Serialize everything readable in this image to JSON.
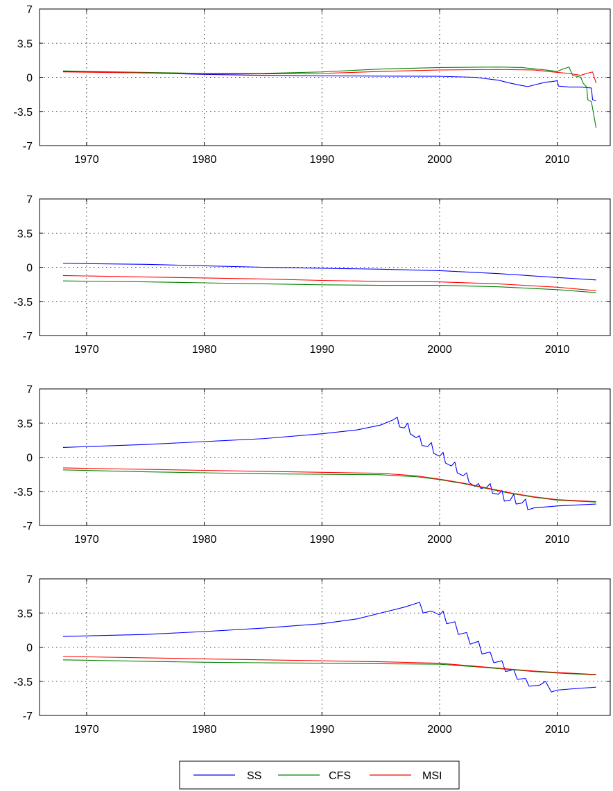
{
  "chart_data": [
    {
      "type": "line",
      "title": "",
      "xlabel": "",
      "ylabel": "",
      "xlim": [
        1966,
        2014.5
      ],
      "ylim": [
        -7,
        7
      ],
      "xticks": [
        "1970",
        "1980",
        "1990",
        "2000",
        "2010"
      ],
      "yticks": [
        "7",
        "3.5",
        "0",
        "-3.5",
        "-7"
      ],
      "grid": true,
      "series": [
        {
          "name": "SS",
          "color": "#0000ff",
          "points": [
            [
              1968,
              0.6
            ],
            [
              1975,
              0.45
            ],
            [
              1980,
              0.3
            ],
            [
              1985,
              0.2
            ],
            [
              1990,
              0.15
            ],
            [
              1995,
              0.12
            ],
            [
              2000,
              0.1
            ],
            [
              2003,
              0.0
            ],
            [
              2005,
              -0.3
            ],
            [
              2006,
              -0.6
            ],
            [
              2007,
              -0.85
            ],
            [
              2007.5,
              -0.95
            ],
            [
              2008,
              -0.8
            ],
            [
              2009,
              -0.5
            ],
            [
              2009.5,
              -0.45
            ],
            [
              2010,
              -0.35
            ],
            [
              2010.1,
              -0.9
            ],
            [
              2011,
              -1.0
            ],
            [
              2012,
              -1.0
            ],
            [
              2012.9,
              -1.1
            ],
            [
              2013,
              -2.3
            ],
            [
              2013.3,
              -2.4
            ]
          ]
        },
        {
          "name": "CFS",
          "color": "#008000",
          "points": [
            [
              1968,
              0.65
            ],
            [
              1975,
              0.5
            ],
            [
              1980,
              0.4
            ],
            [
              1985,
              0.4
            ],
            [
              1990,
              0.55
            ],
            [
              1995,
              0.85
            ],
            [
              2000,
              1.0
            ],
            [
              2005,
              1.05
            ],
            [
              2007,
              1.0
            ],
            [
              2009,
              0.75
            ],
            [
              2010,
              0.6
            ],
            [
              2010.5,
              0.85
            ],
            [
              2011,
              1.05
            ],
            [
              2011.3,
              0.2
            ],
            [
              2012,
              0.0
            ],
            [
              2012.2,
              -0.6
            ],
            [
              2012.5,
              -1.0
            ],
            [
              2012.6,
              -2.3
            ],
            [
              2012.9,
              -2.5
            ],
            [
              2013.3,
              -5.2
            ]
          ]
        },
        {
          "name": "MSI",
          "color": "#ff0000",
          "points": [
            [
              1968,
              0.55
            ],
            [
              1975,
              0.45
            ],
            [
              1980,
              0.35
            ],
            [
              1985,
              0.35
            ],
            [
              1990,
              0.4
            ],
            [
              1995,
              0.6
            ],
            [
              2000,
              0.75
            ],
            [
              2005,
              0.8
            ],
            [
              2008,
              0.75
            ],
            [
              2010,
              0.5
            ],
            [
              2011,
              0.4
            ],
            [
              2012,
              0.2
            ],
            [
              2012.5,
              0.4
            ],
            [
              2013,
              0.55
            ],
            [
              2013.3,
              -0.6
            ]
          ]
        }
      ]
    },
    {
      "type": "line",
      "title": "",
      "xlabel": "",
      "ylabel": "",
      "xlim": [
        1966,
        2014.5
      ],
      "ylim": [
        -7,
        7
      ],
      "xticks": [
        "1970",
        "1980",
        "1990",
        "2000",
        "2010"
      ],
      "yticks": [
        "7",
        "3.5",
        "0",
        "-3.5",
        "-7"
      ],
      "grid": true,
      "series": [
        {
          "name": "SS",
          "color": "#0000ff",
          "points": [
            [
              1968,
              0.4
            ],
            [
              1975,
              0.3
            ],
            [
              1980,
              0.15
            ],
            [
              1985,
              0.0
            ],
            [
              1990,
              -0.1
            ],
            [
              1995,
              -0.2
            ],
            [
              2000,
              -0.35
            ],
            [
              2005,
              -0.65
            ],
            [
              2010,
              -1.05
            ],
            [
              2013.3,
              -1.3
            ]
          ]
        },
        {
          "name": "CFS",
          "color": "#008000",
          "points": [
            [
              1968,
              -1.4
            ],
            [
              1975,
              -1.5
            ],
            [
              1980,
              -1.6
            ],
            [
              1985,
              -1.7
            ],
            [
              1990,
              -1.8
            ],
            [
              1995,
              -1.85
            ],
            [
              2000,
              -1.85
            ],
            [
              2005,
              -2.0
            ],
            [
              2010,
              -2.3
            ],
            [
              2013.3,
              -2.6
            ]
          ]
        },
        {
          "name": "MSI",
          "color": "#ff0000",
          "points": [
            [
              1968,
              -0.85
            ],
            [
              1975,
              -1.0
            ],
            [
              1980,
              -1.1
            ],
            [
              1985,
              -1.2
            ],
            [
              1990,
              -1.35
            ],
            [
              1995,
              -1.45
            ],
            [
              2000,
              -1.5
            ],
            [
              2005,
              -1.7
            ],
            [
              2010,
              -2.05
            ],
            [
              2013.3,
              -2.4
            ]
          ]
        }
      ]
    },
    {
      "type": "line",
      "title": "",
      "xlabel": "",
      "ylabel": "",
      "xlim": [
        1966,
        2014.5
      ],
      "ylim": [
        -7,
        7
      ],
      "xticks": [
        "1970",
        "1980",
        "1990",
        "2000",
        "2010"
      ],
      "yticks": [
        "7",
        "3.5",
        "0",
        "-3.5",
        "-7"
      ],
      "grid": true,
      "series": [
        {
          "name": "SS",
          "color": "#0000ff",
          "points": [
            [
              1968,
              1.0
            ],
            [
              1975,
              1.3
            ],
            [
              1980,
              1.6
            ],
            [
              1985,
              1.9
            ],
            [
              1990,
              2.4
            ],
            [
              1993,
              2.8
            ],
            [
              1995,
              3.3
            ],
            [
              1996,
              3.8
            ],
            [
              1996.4,
              4.1
            ],
            [
              1996.6,
              3.1
            ],
            [
              1997,
              3.0
            ],
            [
              1997.3,
              3.5
            ],
            [
              1997.5,
              2.4
            ],
            [
              1998,
              2.0
            ],
            [
              1998.3,
              2.2
            ],
            [
              1998.5,
              1.2
            ],
            [
              1999,
              1.1
            ],
            [
              1999.3,
              1.5
            ],
            [
              1999.5,
              0.4
            ],
            [
              2000,
              0.1
            ],
            [
              2000.3,
              0.5
            ],
            [
              2000.5,
              -0.6
            ],
            [
              2001,
              -0.9
            ],
            [
              2001.3,
              -0.5
            ],
            [
              2001.5,
              -1.6
            ],
            [
              2002,
              -1.9
            ],
            [
              2002.3,
              -1.6
            ],
            [
              2002.5,
              -2.6
            ],
            [
              2003,
              -3.0
            ],
            [
              2003.3,
              -2.7
            ],
            [
              2003.5,
              -3.2
            ],
            [
              2004,
              -3.1
            ],
            [
              2004.3,
              -2.7
            ],
            [
              2004.5,
              -3.7
            ],
            [
              2005,
              -3.8
            ],
            [
              2005.3,
              -3.4
            ],
            [
              2005.5,
              -4.5
            ],
            [
              2006,
              -4.4
            ],
            [
              2006.3,
              -3.8
            ],
            [
              2006.5,
              -4.8
            ],
            [
              2007,
              -4.7
            ],
            [
              2007.3,
              -4.3
            ],
            [
              2007.5,
              -5.4
            ],
            [
              2008,
              -5.2
            ],
            [
              2010,
              -5.0
            ],
            [
              2013.3,
              -4.8
            ]
          ]
        },
        {
          "name": "CFS",
          "color": "#008000",
          "points": [
            [
              1968,
              -1.3
            ],
            [
              1975,
              -1.5
            ],
            [
              1980,
              -1.6
            ],
            [
              1985,
              -1.7
            ],
            [
              1990,
              -1.75
            ],
            [
              1995,
              -1.8
            ],
            [
              1998,
              -2.0
            ],
            [
              2000,
              -2.3
            ],
            [
              2002,
              -2.7
            ],
            [
              2004,
              -3.2
            ],
            [
              2006,
              -3.7
            ],
            [
              2008,
              -4.1
            ],
            [
              2010,
              -4.4
            ],
            [
              2013.3,
              -4.6
            ]
          ]
        },
        {
          "name": "MSI",
          "color": "#ff0000",
          "points": [
            [
              1968,
              -1.1
            ],
            [
              1975,
              -1.25
            ],
            [
              1980,
              -1.35
            ],
            [
              1985,
              -1.45
            ],
            [
              1990,
              -1.55
            ],
            [
              1995,
              -1.65
            ],
            [
              1998,
              -1.9
            ],
            [
              2000,
              -2.25
            ],
            [
              2002,
              -2.65
            ],
            [
              2004,
              -3.15
            ],
            [
              2006,
              -3.65
            ],
            [
              2008,
              -4.05
            ],
            [
              2010,
              -4.35
            ],
            [
              2013.3,
              -4.55
            ]
          ]
        }
      ]
    },
    {
      "type": "line",
      "title": "",
      "xlabel": "",
      "ylabel": "",
      "xlim": [
        1966,
        2014.5
      ],
      "ylim": [
        -7,
        7
      ],
      "xticks": [
        "1970",
        "1980",
        "1990",
        "2000",
        "2010"
      ],
      "yticks": [
        "7",
        "3.5",
        "0",
        "-3.5",
        "-7"
      ],
      "grid": true,
      "series": [
        {
          "name": "SS",
          "color": "#0000ff",
          "points": [
            [
              1968,
              1.1
            ],
            [
              1975,
              1.3
            ],
            [
              1980,
              1.6
            ],
            [
              1985,
              1.95
            ],
            [
              1990,
              2.4
            ],
            [
              1993,
              2.9
            ],
            [
              1995,
              3.5
            ],
            [
              1997,
              4.1
            ],
            [
              1998.3,
              4.6
            ],
            [
              1998.6,
              3.5
            ],
            [
              1999.3,
              3.7
            ],
            [
              2000,
              3.3
            ],
            [
              2000.3,
              3.7
            ],
            [
              2000.6,
              2.4
            ],
            [
              2001.3,
              2.6
            ],
            [
              2001.6,
              1.3
            ],
            [
              2002.3,
              1.5
            ],
            [
              2002.6,
              0.3
            ],
            [
              2003.3,
              0.6
            ],
            [
              2003.6,
              -0.7
            ],
            [
              2004.3,
              -0.5
            ],
            [
              2004.6,
              -1.6
            ],
            [
              2005.3,
              -1.4
            ],
            [
              2005.6,
              -2.5
            ],
            [
              2006.3,
              -2.3
            ],
            [
              2006.6,
              -3.3
            ],
            [
              2007.3,
              -3.2
            ],
            [
              2007.6,
              -4.0
            ],
            [
              2008.5,
              -3.9
            ],
            [
              2009,
              -3.5
            ],
            [
              2009.5,
              -4.6
            ],
            [
              2010,
              -4.4
            ],
            [
              2011,
              -4.3
            ],
            [
              2013.3,
              -4.1
            ]
          ]
        },
        {
          "name": "CFS",
          "color": "#008000",
          "points": [
            [
              1968,
              -1.3
            ],
            [
              1975,
              -1.45
            ],
            [
              1980,
              -1.55
            ],
            [
              1985,
              -1.6
            ],
            [
              1990,
              -1.65
            ],
            [
              1995,
              -1.7
            ],
            [
              2000,
              -1.75
            ],
            [
              2003,
              -2.0
            ],
            [
              2005,
              -2.2
            ],
            [
              2008,
              -2.5
            ],
            [
              2010,
              -2.65
            ],
            [
              2013.3,
              -2.85
            ]
          ]
        },
        {
          "name": "MSI",
          "color": "#ff0000",
          "points": [
            [
              1968,
              -0.95
            ],
            [
              1975,
              -1.1
            ],
            [
              1980,
              -1.2
            ],
            [
              1985,
              -1.3
            ],
            [
              1990,
              -1.4
            ],
            [
              1995,
              -1.5
            ],
            [
              2000,
              -1.65
            ],
            [
              2003,
              -1.95
            ],
            [
              2005,
              -2.15
            ],
            [
              2008,
              -2.45
            ],
            [
              2010,
              -2.6
            ],
            [
              2013.3,
              -2.8
            ]
          ]
        }
      ]
    }
  ],
  "legend": {
    "placement": "bottom-center",
    "entries": [
      {
        "label": "SS",
        "color": "#0000ff"
      },
      {
        "label": "CFS",
        "color": "#008000"
      },
      {
        "label": "MSI",
        "color": "#ff0000"
      }
    ]
  }
}
